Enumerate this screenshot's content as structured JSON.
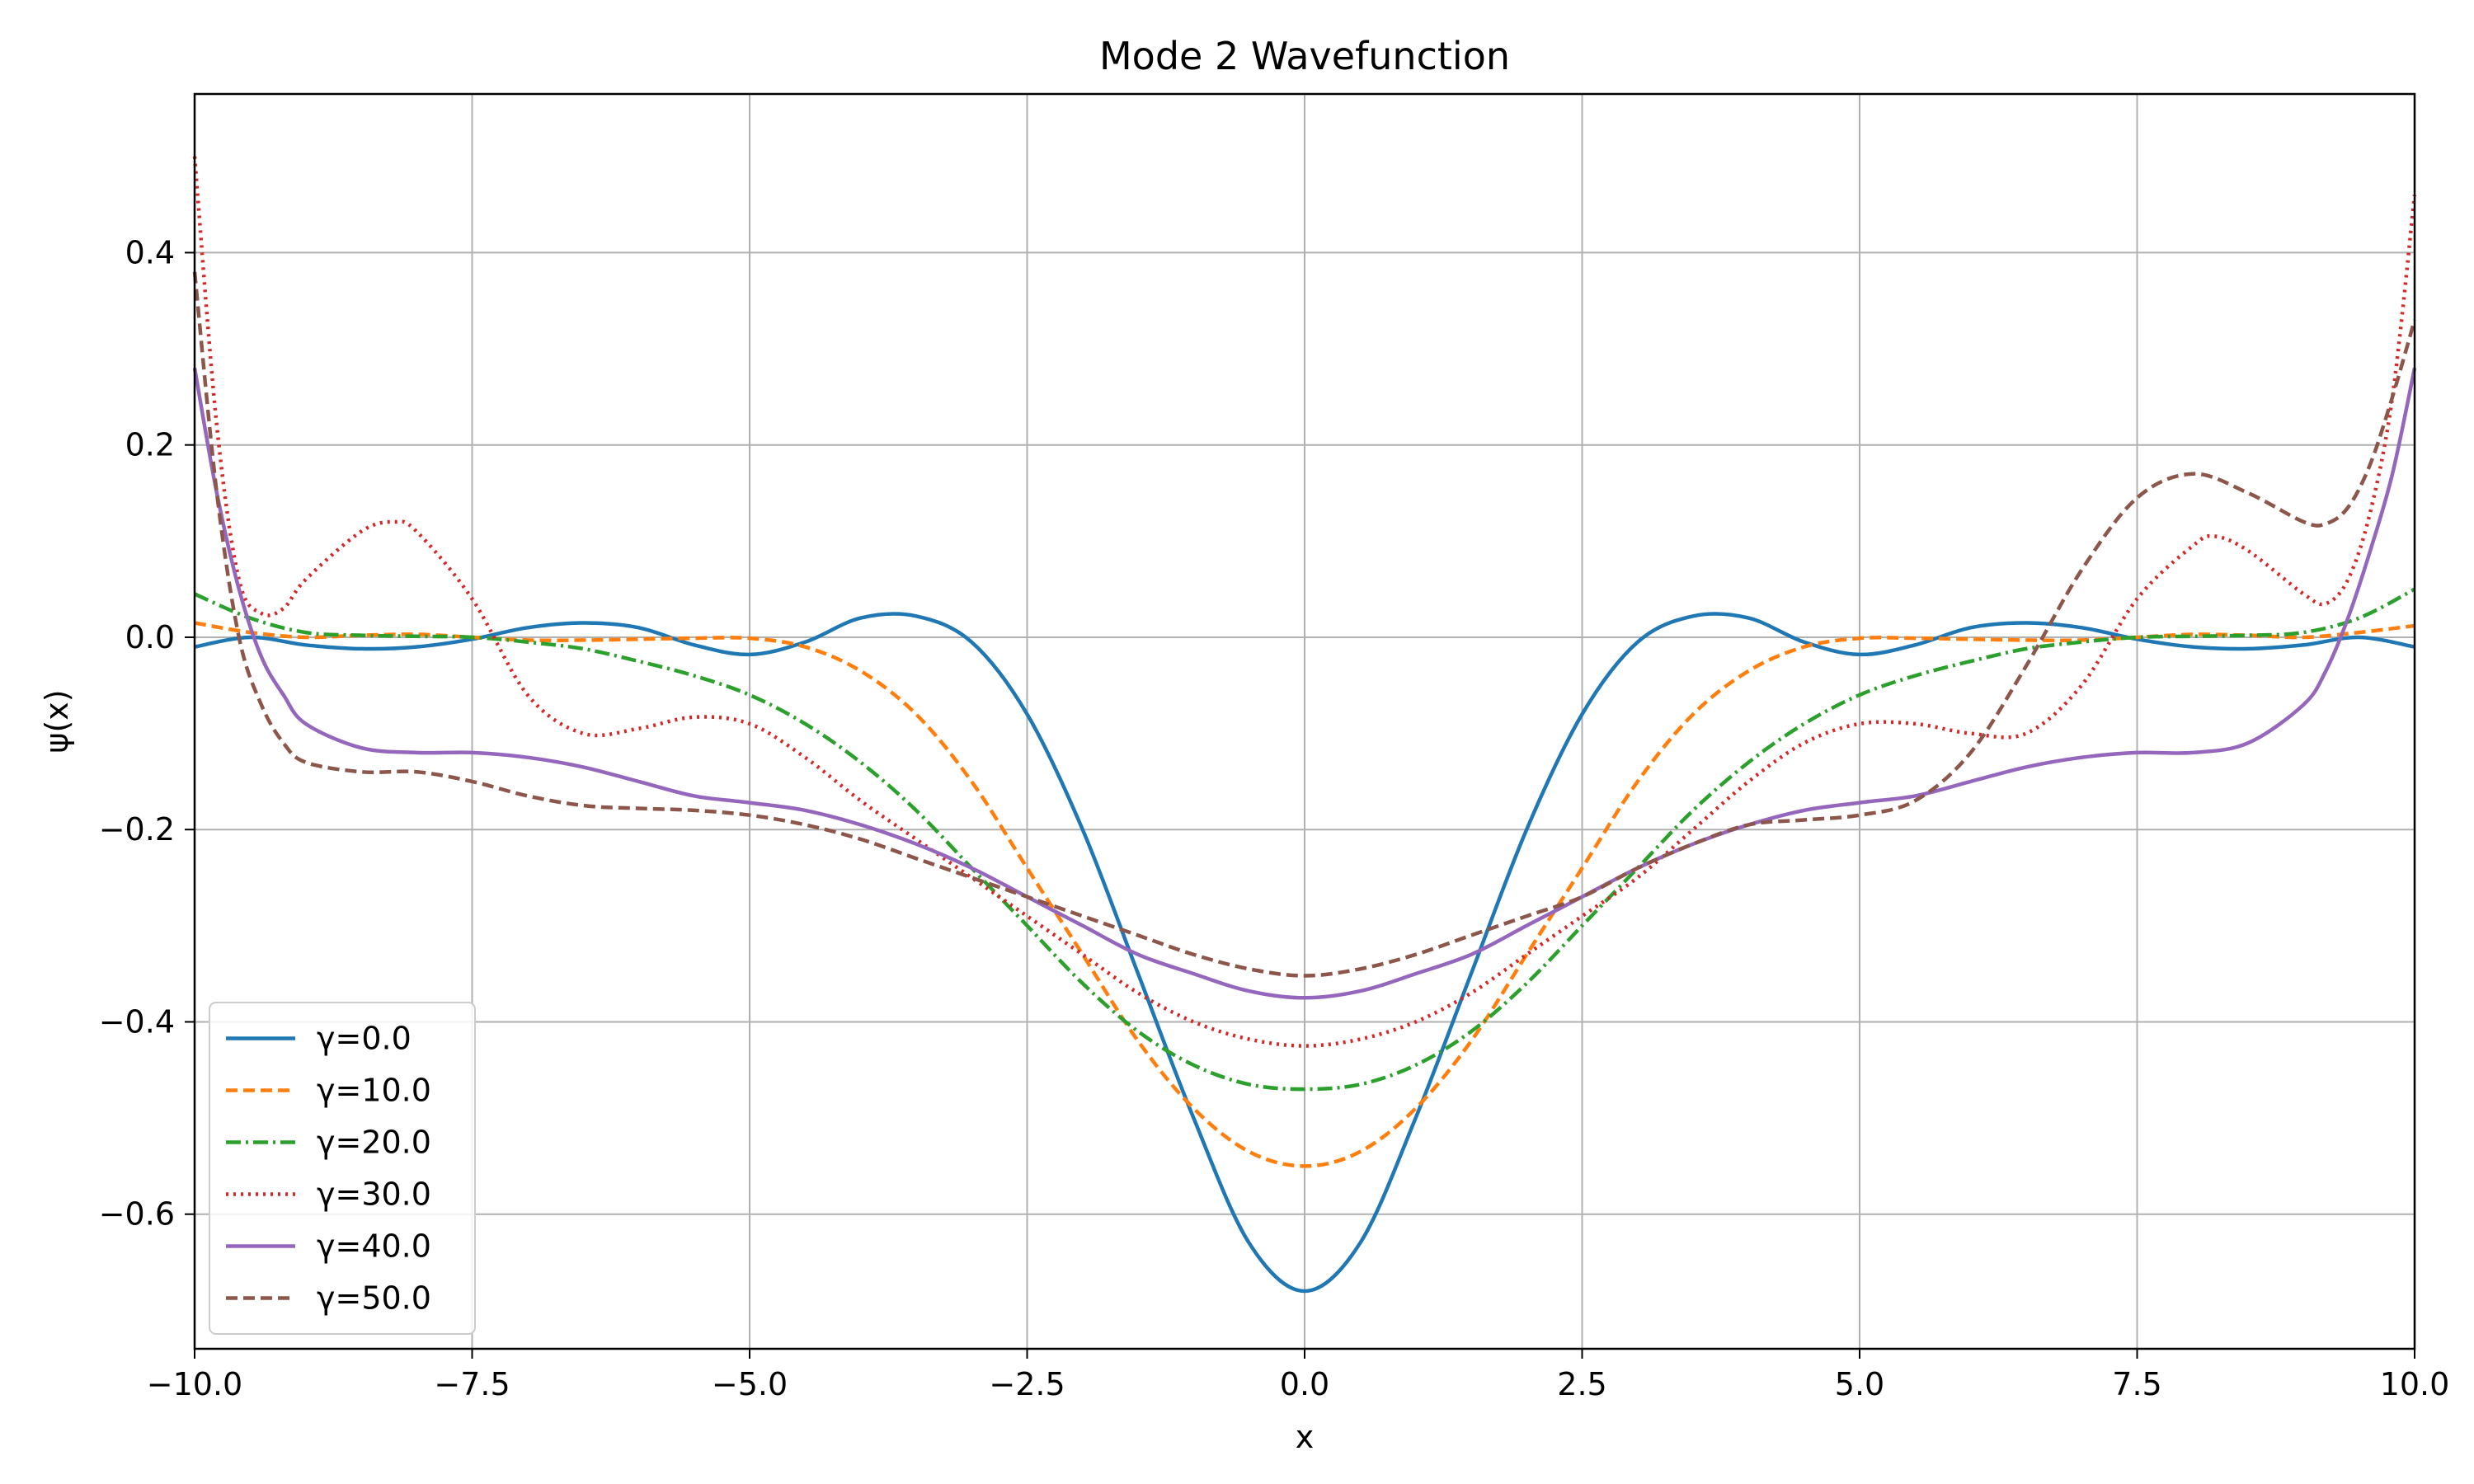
{
  "chart_data": {
    "type": "line",
    "title": "Mode 2 Wavefunction",
    "xlabel": "x",
    "ylabel": "ψ(x)",
    "xlim": [
      -10,
      10
    ],
    "ylim": [
      -0.74,
      0.565
    ],
    "grid": true,
    "legend_position": "lower-left",
    "x_ticks": [
      -10,
      -7.5,
      -5,
      -2.5,
      0,
      2.5,
      5,
      7.5,
      10
    ],
    "x_tick_labels": [
      "−10.0",
      "−7.5",
      "−5.0",
      "−2.5",
      "0.0",
      "2.5",
      "5.0",
      "7.5",
      "10.0"
    ],
    "y_ticks": [
      -0.6,
      -0.4,
      -0.2,
      0.0,
      0.2,
      0.4
    ],
    "y_tick_labels": [
      "−0.6",
      "−0.4",
      "−0.2",
      "0.0",
      "0.2",
      "0.4"
    ],
    "series": [
      {
        "name": "γ=0.0",
        "color": "#1f77b4",
        "dash": "solid",
        "x": [
          -10,
          -9.5,
          -9,
          -8.5,
          -8,
          -7.5,
          -7,
          -6.5,
          -6,
          -5.5,
          -5,
          -4.5,
          -4,
          -3.5,
          -3,
          -2.5,
          -2,
          -1.5,
          -1,
          -0.5,
          0,
          0.5,
          1,
          1.5,
          2,
          2.5,
          3,
          3.5,
          4,
          4.5,
          5,
          5.5,
          6,
          6.5,
          7,
          7.5,
          8,
          8.5,
          9,
          9.5,
          10
        ],
        "y": [
          -0.01,
          0.0,
          -0.008,
          -0.012,
          -0.01,
          -0.002,
          0.01,
          0.015,
          0.01,
          -0.008,
          -0.018,
          -0.005,
          0.02,
          0.022,
          -0.005,
          -0.08,
          -0.2,
          -0.35,
          -0.5,
          -0.63,
          -0.68,
          -0.63,
          -0.5,
          -0.35,
          -0.2,
          -0.08,
          -0.005,
          0.022,
          0.02,
          -0.005,
          -0.018,
          -0.008,
          0.01,
          0.015,
          0.01,
          -0.002,
          -0.01,
          -0.012,
          -0.008,
          0.0,
          -0.01
        ]
      },
      {
        "name": "γ=10.0",
        "color": "#ff7f0e",
        "dash": "14,7",
        "x": [
          -10,
          -9.5,
          -9,
          -8.5,
          -8,
          -7.5,
          -7,
          -6.5,
          -6,
          -5.5,
          -5,
          -4.5,
          -4,
          -3.5,
          -3,
          -2.5,
          -2,
          -1.5,
          -1,
          -0.5,
          0,
          0.5,
          1,
          1.5,
          2,
          2.5,
          3,
          3.5,
          4,
          4.5,
          5,
          5.5,
          6,
          6.5,
          7,
          7.5,
          8,
          8.5,
          9,
          9.5,
          10
        ],
        "y": [
          0.015,
          0.005,
          0.0,
          0.002,
          0.003,
          0.0,
          -0.003,
          -0.003,
          -0.002,
          -0.001,
          -0.001,
          -0.01,
          -0.035,
          -0.08,
          -0.15,
          -0.24,
          -0.33,
          -0.42,
          -0.49,
          -0.535,
          -0.55,
          -0.535,
          -0.49,
          -0.42,
          -0.33,
          -0.24,
          -0.15,
          -0.08,
          -0.035,
          -0.01,
          -0.001,
          -0.001,
          -0.002,
          -0.003,
          -0.003,
          0.0,
          0.003,
          0.002,
          0.0,
          0.005,
          0.012
        ]
      },
      {
        "name": "γ=20.0",
        "color": "#2ca02c",
        "dash": "18,6,3,6",
        "x": [
          -10,
          -9.5,
          -9,
          -8.5,
          -8,
          -7.5,
          -7,
          -6.5,
          -6,
          -5.5,
          -5,
          -4.5,
          -4,
          -3.5,
          -3,
          -2.5,
          -2,
          -1.5,
          -1,
          -0.5,
          0,
          0.5,
          1,
          1.5,
          2,
          2.5,
          3,
          3.5,
          4,
          4.5,
          5,
          5.5,
          6,
          6.5,
          7,
          7.5,
          8,
          8.5,
          9,
          9.5,
          10
        ],
        "y": [
          0.045,
          0.02,
          0.005,
          0.002,
          0.001,
          0.0,
          -0.005,
          -0.012,
          -0.025,
          -0.04,
          -0.06,
          -0.09,
          -0.13,
          -0.18,
          -0.24,
          -0.3,
          -0.36,
          -0.41,
          -0.445,
          -0.465,
          -0.47,
          -0.465,
          -0.445,
          -0.41,
          -0.36,
          -0.3,
          -0.24,
          -0.18,
          -0.13,
          -0.09,
          -0.06,
          -0.04,
          -0.025,
          -0.012,
          -0.005,
          0.0,
          0.001,
          0.002,
          0.005,
          0.02,
          0.05
        ]
      },
      {
        "name": "γ=30.0",
        "color": "#d62728",
        "dash": "3,6",
        "x": [
          -10,
          -9.8,
          -9.6,
          -9.4,
          -9.2,
          -9,
          -8.5,
          -8.2,
          -8,
          -7.5,
          -7,
          -6.5,
          -6,
          -5.5,
          -5,
          -4.5,
          -4,
          -3.5,
          -3,
          -2.5,
          -2,
          -1.5,
          -1,
          -0.5,
          0,
          0.5,
          1,
          1.5,
          2,
          2.5,
          3,
          3.5,
          4,
          4.5,
          5,
          5.5,
          6,
          6.5,
          7,
          7.5,
          8,
          8.2,
          8.5,
          9,
          9.2,
          9.4,
          9.6,
          9.8,
          10
        ],
        "y": [
          0.5,
          0.22,
          0.06,
          0.025,
          0.03,
          0.06,
          0.11,
          0.12,
          0.11,
          0.04,
          -0.06,
          -0.1,
          -0.095,
          -0.083,
          -0.09,
          -0.125,
          -0.17,
          -0.21,
          -0.25,
          -0.29,
          -0.33,
          -0.37,
          -0.4,
          -0.418,
          -0.425,
          -0.418,
          -0.4,
          -0.37,
          -0.33,
          -0.29,
          -0.25,
          -0.2,
          -0.15,
          -0.11,
          -0.09,
          -0.09,
          -0.1,
          -0.1,
          -0.05,
          0.04,
          0.095,
          0.105,
          0.09,
          0.045,
          0.035,
          0.06,
          0.13,
          0.25,
          0.46
        ]
      },
      {
        "name": "γ=40.0",
        "color": "#9467bd",
        "dash": "solid",
        "x": [
          -10,
          -9.8,
          -9.6,
          -9.4,
          -9.2,
          -9,
          -8.5,
          -8,
          -7.5,
          -7,
          -6.5,
          -6,
          -5.5,
          -5,
          -4.5,
          -4,
          -3.5,
          -3,
          -2.5,
          -2,
          -1.5,
          -1,
          -0.5,
          0,
          0.5,
          1,
          1.5,
          2,
          2.5,
          3,
          3.5,
          4,
          4.5,
          5,
          5.5,
          6,
          6.5,
          7,
          7.5,
          8,
          8.5,
          9,
          9.2,
          9.4,
          9.6,
          9.8,
          10
        ],
        "y": [
          0.28,
          0.15,
          0.05,
          -0.02,
          -0.06,
          -0.09,
          -0.115,
          -0.12,
          -0.12,
          -0.125,
          -0.135,
          -0.15,
          -0.165,
          -0.172,
          -0.18,
          -0.195,
          -0.215,
          -0.24,
          -0.27,
          -0.3,
          -0.33,
          -0.35,
          -0.368,
          -0.375,
          -0.368,
          -0.35,
          -0.33,
          -0.3,
          -0.27,
          -0.24,
          -0.215,
          -0.195,
          -0.18,
          -0.172,
          -0.165,
          -0.15,
          -0.135,
          -0.125,
          -0.12,
          -0.12,
          -0.11,
          -0.07,
          -0.035,
          0.02,
          0.09,
          0.17,
          0.28
        ]
      },
      {
        "name": "γ=50.0",
        "color": "#8c564b",
        "dash": "14,7",
        "x": [
          -10,
          -9.8,
          -9.6,
          -9.4,
          -9.2,
          -9,
          -8.5,
          -8,
          -7.5,
          -7,
          -6.5,
          -6,
          -5.5,
          -5,
          -4.5,
          -4,
          -3.5,
          -3,
          -2.5,
          -2,
          -1.5,
          -1,
          -0.5,
          0,
          0.5,
          1,
          1.5,
          2,
          2.5,
          3,
          3.5,
          4,
          4.5,
          5,
          5.5,
          6,
          6.5,
          7,
          7.5,
          8,
          8.5,
          9,
          9.2,
          9.4,
          9.6,
          9.8,
          10
        ],
        "y": [
          0.38,
          0.15,
          0.0,
          -0.07,
          -0.11,
          -0.13,
          -0.14,
          -0.14,
          -0.15,
          -0.165,
          -0.175,
          -0.178,
          -0.18,
          -0.185,
          -0.195,
          -0.21,
          -0.23,
          -0.25,
          -0.27,
          -0.29,
          -0.31,
          -0.33,
          -0.345,
          -0.352,
          -0.345,
          -0.33,
          -0.31,
          -0.29,
          -0.27,
          -0.24,
          -0.215,
          -0.195,
          -0.19,
          -0.185,
          -0.17,
          -0.12,
          -0.03,
          0.07,
          0.145,
          0.17,
          0.15,
          0.12,
          0.118,
          0.135,
          0.18,
          0.25,
          0.33
        ]
      }
    ]
  }
}
